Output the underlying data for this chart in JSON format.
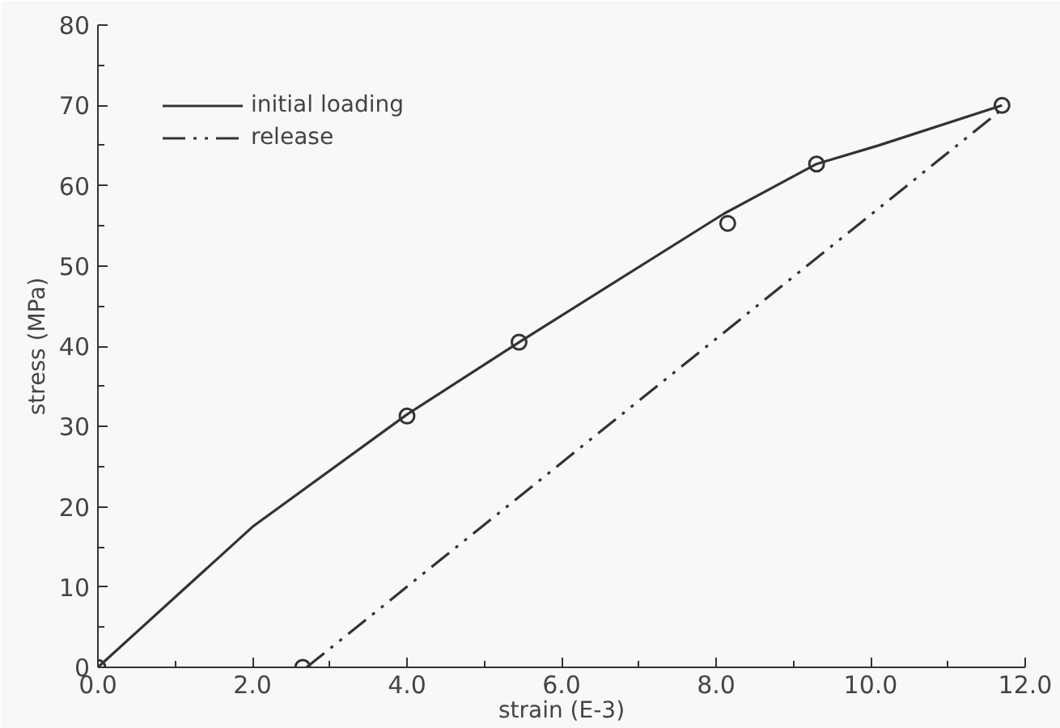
{
  "chart_data": {
    "type": "line",
    "xlabel": "strain (E-3)",
    "ylabel": "stress (MPa)",
    "xlim": [
      0,
      12
    ],
    "ylim": [
      0,
      80
    ],
    "xticks": [
      {
        "value": 0,
        "label": "0.0"
      },
      {
        "value": 2,
        "label": "2.0"
      },
      {
        "value": 4,
        "label": "4.0"
      },
      {
        "value": 6,
        "label": "6.0"
      },
      {
        "value": 8,
        "label": "8.0"
      },
      {
        "value": 10,
        "label": "10.0"
      },
      {
        "value": 12,
        "label": "12.0"
      }
    ],
    "yticks": [
      0,
      10,
      20,
      30,
      40,
      50,
      60,
      70,
      80
    ],
    "grid": false,
    "legend": "top left",
    "series": [
      {
        "name": "initial loading",
        "color": "#333333",
        "line_style": "solid",
        "marker": "none",
        "x": [
          0,
          2.0,
          4.0,
          5.45,
          8.1,
          9.3,
          10.1,
          11.7
        ],
        "values": [
          0,
          17.5,
          31.5,
          40.5,
          56.5,
          62.7,
          65,
          70
        ]
      },
      {
        "name": "release",
        "color": "#333333",
        "line_style": "dashdotdot",
        "marker": "none",
        "x": [
          2.7,
          11.7
        ],
        "values": [
          0,
          69.5
        ]
      },
      {
        "type": "scatter",
        "color": "#333333",
        "marker": "circle",
        "x": [
          0,
          2.65,
          4.0,
          5.45,
          8.15,
          9.3,
          11.7
        ],
        "values": [
          0,
          0,
          31.3,
          40.5,
          55.3,
          62.7,
          70
        ]
      }
    ]
  }
}
